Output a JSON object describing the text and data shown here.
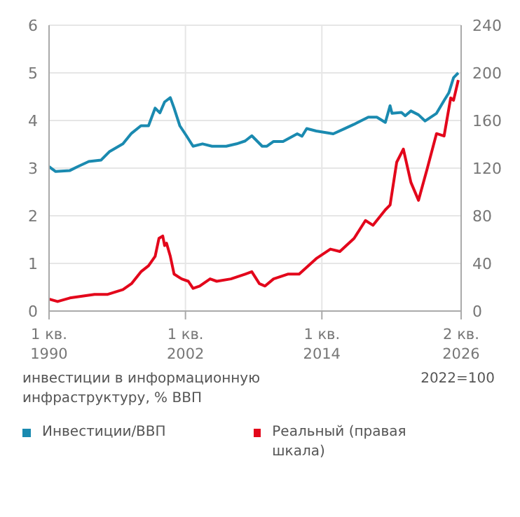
{
  "chart_data": {
    "type": "line",
    "ylabel": "инвестиции в информационную инфраструктуру, % ВВП",
    "annotations": [
      "2022=100"
    ],
    "xlim": [
      "1990-01",
      "2026-04"
    ],
    "xticks": [
      {
        "value": "1990-01",
        "label": "1 кв.\n1990"
      },
      {
        "value": "2002-01",
        "label": "1 кв.\n2002"
      },
      {
        "value": "2014-01",
        "label": "1 кв.\n2014"
      },
      {
        "value": "2026-04",
        "label": "2 кв.\n2026"
      }
    ],
    "ylim": [
      0,
      6
    ],
    "yticks": [
      0,
      1,
      2,
      3,
      4,
      5,
      6
    ],
    "y2lim": [
      0,
      240
    ],
    "y2ticks": [
      0,
      40,
      80,
      120,
      160,
      200,
      240
    ],
    "grid": true,
    "legend": "bottom",
    "line_style": "solid",
    "marker": "none",
    "series": [
      {
        "name": "Инвестиции/ВВП",
        "color": "#1a8ab0",
        "x": [
          "1990-01",
          "1990-08",
          "1991-11",
          "1992-07",
          "1993-07",
          "1994-08",
          "1995-05",
          "1996-07",
          "1997-04",
          "1998-02",
          "1998-10",
          "1999-05",
          "1999-10",
          "2000-03",
          "2000-09",
          "2001-01",
          "2001-07",
          "2002-02",
          "2002-09",
          "2003-07",
          "2004-05",
          "2005-08",
          "2006-07",
          "2007-04",
          "2007-11",
          "2008-10",
          "2009-03",
          "2009-10",
          "2010-08",
          "2011-11",
          "2012-04",
          "2012-09",
          "2013-07",
          "2015-01",
          "2016-01",
          "2016-11",
          "2018-02",
          "2018-11",
          "2019-08",
          "2020-01",
          "2020-03",
          "2021-01",
          "2021-05",
          "2021-11",
          "2022-07",
          "2023-02",
          "2024-02",
          "2024-10",
          "2025-03",
          "2025-08",
          "2026-01"
        ],
        "values": [
          3.03,
          2.93,
          2.95,
          3.03,
          3.14,
          3.17,
          3.35,
          3.51,
          3.73,
          3.89,
          3.89,
          4.26,
          4.16,
          4.39,
          4.48,
          4.26,
          3.89,
          3.68,
          3.46,
          3.51,
          3.46,
          3.46,
          3.51,
          3.57,
          3.68,
          3.46,
          3.46,
          3.56,
          3.56,
          3.72,
          3.67,
          3.83,
          3.78,
          3.72,
          3.83,
          3.92,
          4.07,
          4.07,
          3.96,
          4.31,
          4.15,
          4.17,
          4.1,
          4.2,
          4.12,
          3.99,
          4.15,
          4.42,
          4.58,
          4.9,
          5.0
        ]
      },
      {
        "name": "Реальный (правая шкала)",
        "color": "#e3061b",
        "axis": "y2",
        "x": [
          "1990-01",
          "1990-10",
          "1991-11",
          "1994-01",
          "1995-03",
          "1996-07",
          "1997-04",
          "1998-02",
          "1998-10",
          "1999-05",
          "1999-09",
          "2000-01",
          "2000-03",
          "2000-05",
          "2000-09",
          "2001-01",
          "2001-09",
          "2002-04",
          "2002-09",
          "2003-04",
          "2004-03",
          "2004-10",
          "2006-01",
          "2007-04",
          "2007-11",
          "2008-07",
          "2009-01",
          "2009-10",
          "2011-01",
          "2012-01",
          "2013-07",
          "2014-10",
          "2015-08",
          "2016-11",
          "2017-11",
          "2018-07",
          "2019-08",
          "2020-01",
          "2020-08",
          "2021-03",
          "2021-11",
          "2022-07",
          "2023-04",
          "2024-02",
          "2024-10",
          "2025-05",
          "2025-08",
          "2026-01"
        ],
        "values": [
          10,
          8,
          11,
          14,
          14,
          18,
          23,
          33,
          38,
          46,
          61,
          63,
          55,
          57,
          46,
          31,
          27,
          25,
          19,
          21,
          27,
          25,
          27,
          31,
          33,
          23,
          21,
          27,
          31,
          31,
          44,
          52,
          50,
          61,
          76,
          72,
          85,
          89,
          125,
          136,
          108,
          93,
          119,
          149,
          147,
          179,
          177,
          194
        ]
      }
    ]
  }
}
